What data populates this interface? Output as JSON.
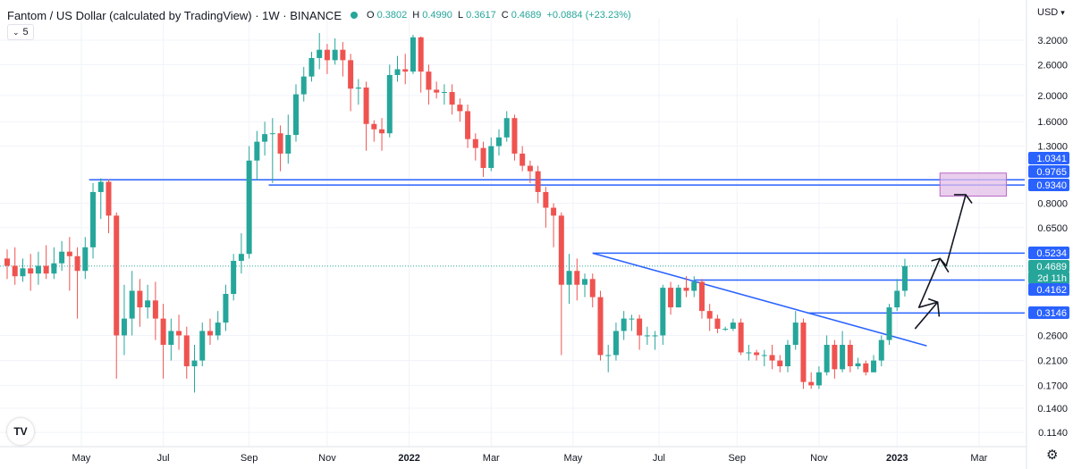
{
  "header": {
    "title": "Fantom / US Dollar (calculated by TradingView) · 1W · BINANCE",
    "open_label": "O",
    "open": "0.3802",
    "high_label": "H",
    "high": "0.4990",
    "low_label": "L",
    "low": "0.3617",
    "close_label": "C",
    "close": "0.4689",
    "change": "+0.0884 (+23.23%)",
    "indicator_value": "5",
    "currency": "USD"
  },
  "icons": {
    "indicator": "chevron-down-icon",
    "logo": "tradingview-logo",
    "settings": "gear-icon",
    "status": "status-dot"
  },
  "colors": {
    "up": "#26a69a",
    "down": "#ef5350",
    "line": "#2962ff",
    "zone": "#e1bee7",
    "last_price": "#26a69a"
  },
  "chart_data": {
    "type": "candlestick",
    "scale": "log",
    "ylim": [
      0.105,
      4.0
    ],
    "y_ticks": [
      "3.2000",
      "2.6000",
      "2.0000",
      "1.6000",
      "1.3000",
      "0.8000",
      "0.6500",
      "0.2600",
      "0.2100",
      "0.1700",
      "0.1400",
      "0.1140"
    ],
    "x_labels": [
      "May",
      "Jul",
      "Sep",
      "Nov",
      "2022",
      "Mar",
      "May",
      "Jul",
      "Sep",
      "Nov",
      "2023",
      "Mar"
    ],
    "price_labels": [
      {
        "text": "1.0341",
        "value": 1.0341,
        "color": "#2962ff"
      },
      {
        "text": "0.9765",
        "value": 0.9765,
        "color": "#2962ff"
      },
      {
        "text": "0.9340",
        "value": 0.934,
        "color": "#2962ff"
      },
      {
        "text": "0.5234",
        "value": 0.5234,
        "color": "#2962ff"
      },
      {
        "text": "0.4689",
        "value": 0.4689,
        "color": "#26a69a"
      },
      {
        "text": "2d 11h",
        "value": 0.4425,
        "color": "#26a69a"
      },
      {
        "text": "0.4162",
        "value": 0.4162,
        "color": "#2962ff"
      },
      {
        "text": "0.3146",
        "value": 0.3146,
        "color": "#2962ff"
      }
    ],
    "levels": [
      0.9765,
      0.934,
      0.5234,
      0.4162,
      0.3146
    ],
    "target_zone": [
      0.85,
      1.0341
    ],
    "last_price": 0.4689,
    "candles": [
      [
        0.5,
        0.47,
        0.54,
        0.42
      ],
      [
        0.47,
        0.43,
        0.55,
        0.4
      ],
      [
        0.43,
        0.46,
        0.5,
        0.41
      ],
      [
        0.46,
        0.44,
        0.52,
        0.38
      ],
      [
        0.44,
        0.47,
        0.53,
        0.4
      ],
      [
        0.47,
        0.44,
        0.56,
        0.42
      ],
      [
        0.44,
        0.48,
        0.55,
        0.42
      ],
      [
        0.48,
        0.53,
        0.58,
        0.45
      ],
      [
        0.53,
        0.51,
        0.6,
        0.38
      ],
      [
        0.51,
        0.45,
        0.55,
        0.3
      ],
      [
        0.45,
        0.55,
        0.6,
        0.42
      ],
      [
        0.55,
        0.88,
        0.95,
        0.5
      ],
      [
        0.88,
        0.96,
        0.99,
        0.7
      ],
      [
        0.96,
        0.72,
        0.98,
        0.62
      ],
      [
        0.72,
        0.26,
        0.74,
        0.18
      ],
      [
        0.26,
        0.3,
        0.4,
        0.22
      ],
      [
        0.3,
        0.38,
        0.45,
        0.26
      ],
      [
        0.38,
        0.33,
        0.42,
        0.28
      ],
      [
        0.33,
        0.35,
        0.4,
        0.3
      ],
      [
        0.35,
        0.3,
        0.41,
        0.25
      ],
      [
        0.3,
        0.24,
        0.34,
        0.18
      ],
      [
        0.24,
        0.27,
        0.3,
        0.21
      ],
      [
        0.27,
        0.26,
        0.31,
        0.23
      ],
      [
        0.26,
        0.2,
        0.28,
        0.18
      ],
      [
        0.2,
        0.21,
        0.24,
        0.16
      ],
      [
        0.21,
        0.27,
        0.29,
        0.2
      ],
      [
        0.27,
        0.26,
        0.3,
        0.24
      ],
      [
        0.26,
        0.29,
        0.32,
        0.25
      ],
      [
        0.29,
        0.37,
        0.4,
        0.27
      ],
      [
        0.37,
        0.49,
        0.52,
        0.35
      ],
      [
        0.49,
        0.52,
        0.62,
        0.44
      ],
      [
        0.52,
        1.15,
        1.3,
        0.5
      ],
      [
        1.15,
        1.35,
        1.48,
        0.97
      ],
      [
        1.35,
        1.44,
        1.6,
        1.2
      ],
      [
        1.44,
        1.45,
        1.65,
        0.95
      ],
      [
        1.45,
        1.22,
        1.55,
        1.05
      ],
      [
        1.22,
        1.43,
        1.7,
        1.12
      ],
      [
        1.43,
        2.02,
        2.2,
        1.35
      ],
      [
        2.02,
        2.35,
        2.55,
        1.9
      ],
      [
        2.35,
        2.75,
        2.9,
        2.25
      ],
      [
        2.75,
        2.95,
        3.4,
        2.5
      ],
      [
        2.95,
        2.7,
        3.1,
        2.4
      ],
      [
        2.7,
        2.95,
        3.25,
        2.6
      ],
      [
        2.95,
        2.7,
        3.15,
        2.35
      ],
      [
        2.7,
        2.12,
        2.85,
        1.75
      ],
      [
        2.12,
        2.14,
        2.3,
        1.85
      ],
      [
        2.14,
        1.57,
        2.25,
        1.25
      ],
      [
        1.57,
        1.5,
        1.62,
        1.35
      ],
      [
        1.5,
        1.45,
        1.65,
        1.25
      ],
      [
        1.45,
        2.38,
        2.6,
        1.4
      ],
      [
        2.38,
        2.5,
        2.8,
        2.25
      ],
      [
        2.5,
        2.45,
        2.85,
        2.2
      ],
      [
        2.45,
        3.28,
        3.35,
        2.4
      ],
      [
        3.28,
        2.45,
        3.3,
        2.05
      ],
      [
        2.45,
        2.1,
        2.6,
        1.85
      ],
      [
        2.1,
        2.05,
        2.25,
        1.95
      ],
      [
        2.05,
        2.06,
        2.2,
        1.85
      ],
      [
        2.06,
        1.85,
        2.2,
        1.7
      ],
      [
        1.85,
        1.75,
        1.95,
        1.6
      ],
      [
        1.75,
        1.38,
        1.85,
        1.28
      ],
      [
        1.38,
        1.28,
        1.45,
        1.15
      ],
      [
        1.28,
        1.08,
        1.35,
        1.0
      ],
      [
        1.08,
        1.3,
        1.4,
        1.05
      ],
      [
        1.3,
        1.4,
        1.5,
        1.2
      ],
      [
        1.4,
        1.65,
        1.75,
        1.35
      ],
      [
        1.65,
        1.22,
        1.7,
        1.15
      ],
      [
        1.22,
        1.1,
        1.3,
        1.05
      ],
      [
        1.1,
        1.05,
        1.15,
        0.95
      ],
      [
        1.05,
        0.88,
        1.1,
        0.8
      ],
      [
        0.88,
        0.77,
        0.92,
        0.65
      ],
      [
        0.77,
        0.72,
        0.8,
        0.55
      ],
      [
        0.72,
        0.4,
        0.74,
        0.22
      ],
      [
        0.4,
        0.45,
        0.52,
        0.34
      ],
      [
        0.45,
        0.4,
        0.5,
        0.35
      ],
      [
        0.4,
        0.42,
        0.44,
        0.36
      ],
      [
        0.42,
        0.36,
        0.44,
        0.33
      ],
      [
        0.36,
        0.22,
        0.38,
        0.21
      ],
      [
        0.22,
        0.22,
        0.24,
        0.19
      ],
      [
        0.22,
        0.27,
        0.29,
        0.21
      ],
      [
        0.27,
        0.3,
        0.32,
        0.25
      ],
      [
        0.3,
        0.3,
        0.31,
        0.27
      ],
      [
        0.3,
        0.26,
        0.31,
        0.23
      ],
      [
        0.26,
        0.26,
        0.28,
        0.24
      ],
      [
        0.26,
        0.26,
        0.27,
        0.23
      ],
      [
        0.26,
        0.39,
        0.4,
        0.24
      ],
      [
        0.39,
        0.33,
        0.41,
        0.31
      ],
      [
        0.33,
        0.39,
        0.4,
        0.33
      ],
      [
        0.39,
        0.38,
        0.43,
        0.36
      ],
      [
        0.38,
        0.41,
        0.43,
        0.36
      ],
      [
        0.41,
        0.32,
        0.42,
        0.3
      ],
      [
        0.32,
        0.3,
        0.34,
        0.27
      ],
      [
        0.3,
        0.275,
        0.31,
        0.265
      ],
      [
        0.275,
        0.275,
        0.28,
        0.27
      ],
      [
        0.275,
        0.29,
        0.3,
        0.27
      ],
      [
        0.29,
        0.225,
        0.3,
        0.22
      ],
      [
        0.225,
        0.225,
        0.24,
        0.21
      ],
      [
        0.225,
        0.22,
        0.23,
        0.21
      ],
      [
        0.22,
        0.22,
        0.23,
        0.2
      ],
      [
        0.22,
        0.21,
        0.24,
        0.195
      ],
      [
        0.21,
        0.2,
        0.22,
        0.19
      ],
      [
        0.2,
        0.24,
        0.25,
        0.19
      ],
      [
        0.24,
        0.29,
        0.32,
        0.23
      ],
      [
        0.29,
        0.175,
        0.3,
        0.165
      ],
      [
        0.175,
        0.17,
        0.19,
        0.165
      ],
      [
        0.17,
        0.19,
        0.2,
        0.165
      ],
      [
        0.19,
        0.24,
        0.26,
        0.185
      ],
      [
        0.24,
        0.195,
        0.25,
        0.18
      ],
      [
        0.195,
        0.24,
        0.27,
        0.19
      ],
      [
        0.24,
        0.2,
        0.25,
        0.19
      ],
      [
        0.2,
        0.205,
        0.215,
        0.195
      ],
      [
        0.205,
        0.19,
        0.21,
        0.185
      ],
      [
        0.19,
        0.21,
        0.22,
        0.19
      ],
      [
        0.21,
        0.25,
        0.26,
        0.2
      ],
      [
        0.25,
        0.33,
        0.34,
        0.24
      ],
      [
        0.33,
        0.38,
        0.42,
        0.32
      ],
      [
        0.38,
        0.4689,
        0.499,
        0.3617
      ]
    ]
  }
}
